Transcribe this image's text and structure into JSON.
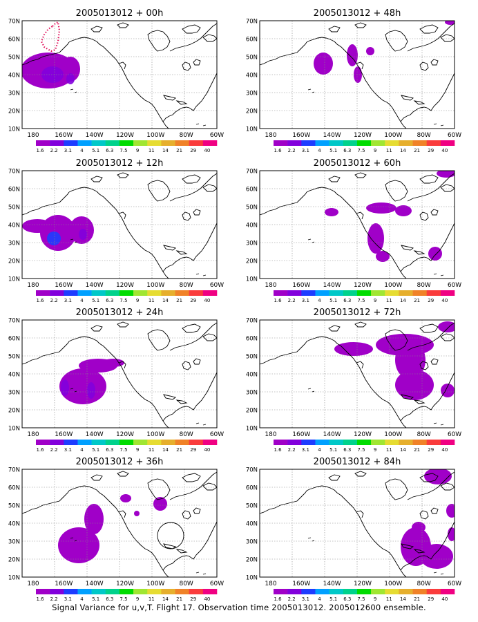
{
  "caption": "Signal Variance for u,v,T. Flight 17. Observation time 2005013012. 2005012600 ensemble.",
  "axes": {
    "lat_labels": [
      "70N",
      "60N",
      "50N",
      "40N",
      "30N",
      "20N",
      "10N"
    ],
    "lon_labels": [
      "180",
      "160W",
      "140W",
      "120W",
      "100W",
      "80W",
      "60W"
    ]
  },
  "colorbar": {
    "labels": [
      "1.6",
      "2.2",
      "3.1",
      "4",
      "5.1",
      "6.3",
      "7.5",
      "9",
      "11",
      "14",
      "21",
      "29",
      "40"
    ],
    "colors": [
      "#a000c8",
      "#8200dc",
      "#1e3cff",
      "#00a0ff",
      "#00c8c8",
      "#00d28c",
      "#00dc00",
      "#a0e632",
      "#e6dc32",
      "#e6af2d",
      "#f08228",
      "#fa3c3c",
      "#f00082"
    ]
  },
  "panels": [
    {
      "title": "2005013012 + 00h"
    },
    {
      "title": "2005013012 + 48h"
    },
    {
      "title": "2005013012 + 12h"
    },
    {
      "title": "2005013012 + 60h"
    },
    {
      "title": "2005013012 + 24h"
    },
    {
      "title": "2005013012 + 72h"
    },
    {
      "title": "2005013012 + 36h"
    },
    {
      "title": "2005013012 + 84h"
    }
  ]
}
